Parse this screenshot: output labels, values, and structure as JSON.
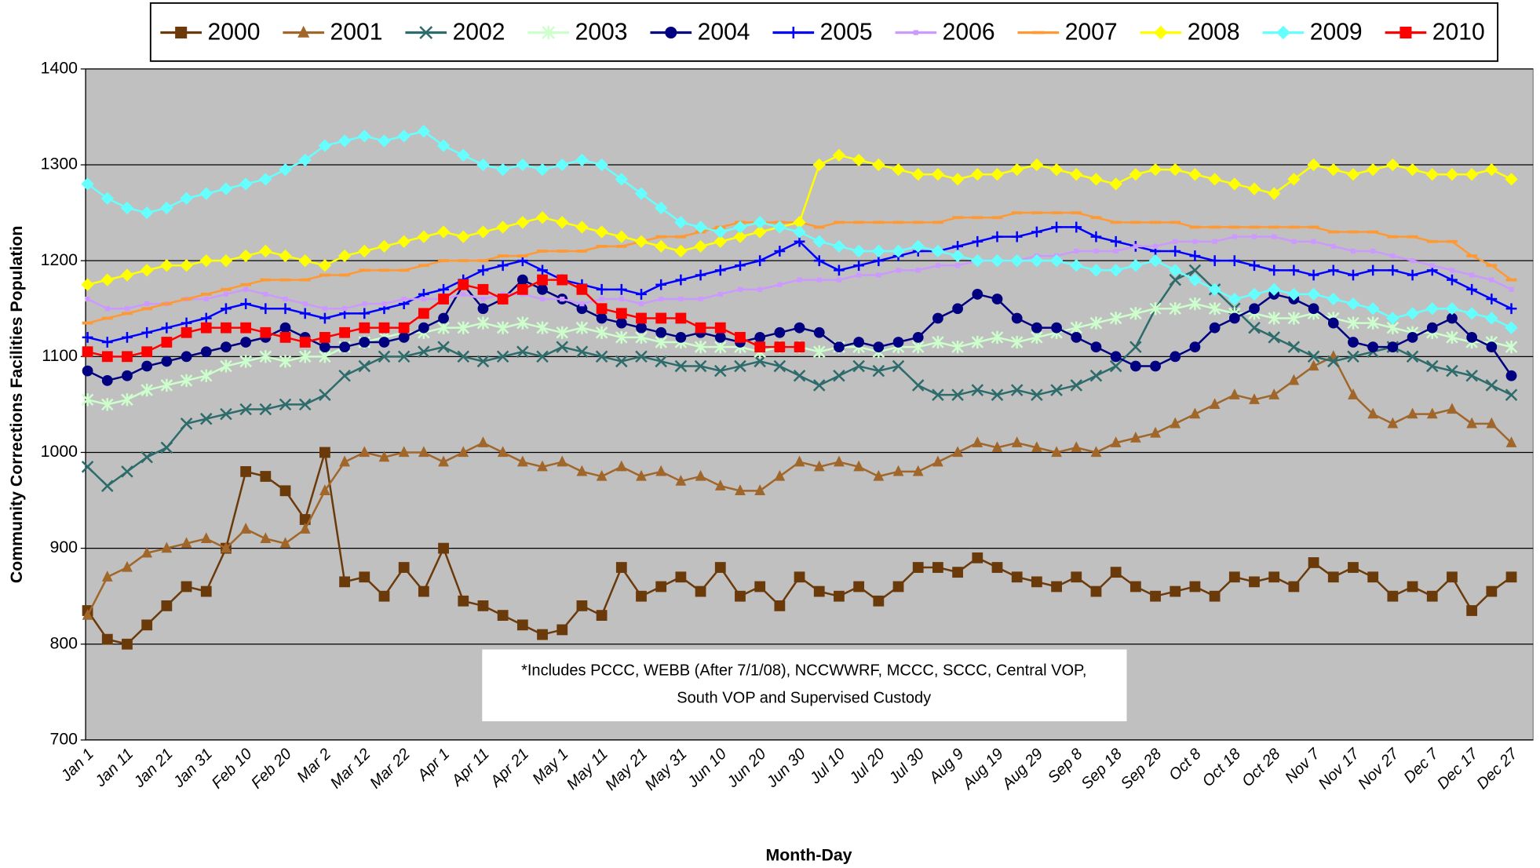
{
  "chart_data": {
    "type": "line",
    "x_label": "Month-Day",
    "y_label": "Community Corrections Facilities Population",
    "annotation": [
      "*Includes PCCC, WEBB (After 7/1/08), NCCWWRF, MCCC, SCCC, Central VOP,",
      "South VOP and Supervised Custody"
    ],
    "ylim": [
      700,
      1400
    ],
    "yticks": [
      700,
      800,
      900,
      1000,
      1100,
      1200,
      1300,
      1400
    ],
    "grid": true,
    "legend": "top",
    "categories": [
      "Jan 1",
      null,
      "Jan 11",
      null,
      "Jan 21",
      null,
      "Jan 31",
      null,
      "Feb 10",
      null,
      "Feb 20",
      null,
      "Mar 2",
      null,
      "Mar 12",
      null,
      "Mar 22",
      null,
      "Apr 1",
      null,
      "Apr 11",
      null,
      "Apr 21",
      null,
      "May 1",
      null,
      "May 11",
      null,
      "May 21",
      null,
      "May 31",
      null,
      "Jun 10",
      null,
      "Jun 20",
      null,
      "Jun 30",
      null,
      "Jul 10",
      null,
      "Jul 20",
      null,
      "Jul 30",
      null,
      "Aug 9",
      null,
      "Aug 19",
      null,
      "Aug 29",
      null,
      "Sep 8",
      null,
      "Sep 18",
      null,
      "Sep 28",
      null,
      "Oct 8",
      null,
      "Oct 18",
      null,
      "Oct 28",
      null,
      "Nov 7",
      null,
      "Nov 17",
      null,
      "Nov 27",
      null,
      "Dec 7",
      null,
      "Dec 17",
      null,
      "Dec 27"
    ],
    "series": [
      {
        "name": "2000",
        "color": "#6b3a0a",
        "marker": "square",
        "values": [
          835,
          805,
          800,
          820,
          840,
          860,
          855,
          900,
          980,
          975,
          960,
          930,
          1000,
          865,
          870,
          850,
          880,
          855,
          900,
          845,
          840,
          830,
          820,
          810,
          815,
          840,
          830,
          880,
          850,
          860,
          870,
          855,
          880,
          850,
          860,
          840,
          870,
          855,
          850,
          860,
          845,
          860,
          880,
          880,
          875,
          890,
          880,
          870,
          865,
          860,
          870,
          855,
          875,
          860,
          850,
          855,
          860,
          850,
          870,
          865,
          870,
          860,
          885,
          870,
          880,
          870,
          850,
          860,
          850,
          870,
          835,
          855,
          870
        ]
      },
      {
        "name": "2001",
        "color": "#a0662a",
        "marker": "triangle",
        "values": [
          830,
          870,
          880,
          895,
          900,
          905,
          910,
          900,
          920,
          910,
          905,
          920,
          960,
          990,
          1000,
          995,
          1000,
          1000,
          990,
          1000,
          1010,
          1000,
          990,
          985,
          990,
          980,
          975,
          985,
          975,
          980,
          970,
          975,
          965,
          960,
          960,
          975,
          990,
          985,
          990,
          985,
          975,
          980,
          980,
          990,
          1000,
          1010,
          1005,
          1010,
          1005,
          1000,
          1005,
          1000,
          1010,
          1015,
          1020,
          1030,
          1040,
          1050,
          1060,
          1055,
          1060,
          1075,
          1090,
          1100,
          1060,
          1040,
          1030,
          1040,
          1040,
          1045,
          1030,
          1030,
          1010
        ]
      },
      {
        "name": "2002",
        "color": "#2e6b6b",
        "marker": "x",
        "values": [
          985,
          965,
          980,
          995,
          1005,
          1030,
          1035,
          1040,
          1045,
          1045,
          1050,
          1050,
          1060,
          1080,
          1090,
          1100,
          1100,
          1105,
          1110,
          1100,
          1095,
          1100,
          1105,
          1100,
          1110,
          1105,
          1100,
          1095,
          1100,
          1095,
          1090,
          1090,
          1085,
          1090,
          1095,
          1090,
          1080,
          1070,
          1080,
          1090,
          1085,
          1090,
          1070,
          1060,
          1060,
          1065,
          1060,
          1065,
          1060,
          1065,
          1070,
          1080,
          1090,
          1110,
          1150,
          1180,
          1190,
          1170,
          1150,
          1130,
          1120,
          1110,
          1100,
          1095,
          1100,
          1105,
          1110,
          1100,
          1090,
          1085,
          1080,
          1070,
          1060
        ]
      },
      {
        "name": "2003",
        "color": "#ccffcc",
        "marker": "star",
        "values": [
          1055,
          1050,
          1055,
          1065,
          1070,
          1075,
          1080,
          1090,
          1095,
          1100,
          1095,
          1100,
          1100,
          1110,
          1115,
          1120,
          1125,
          1125,
          1130,
          1130,
          1135,
          1130,
          1135,
          1130,
          1125,
          1130,
          1125,
          1120,
          1120,
          1115,
          1115,
          1110,
          1110,
          1110,
          1105,
          1110,
          1110,
          1105,
          1110,
          1110,
          1105,
          1110,
          1110,
          1115,
          1110,
          1115,
          1120,
          1115,
          1120,
          1125,
          1130,
          1135,
          1140,
          1145,
          1150,
          1150,
          1155,
          1150,
          1145,
          1145,
          1140,
          1140,
          1145,
          1140,
          1135,
          1135,
          1130,
          1125,
          1125,
          1120,
          1115,
          1115,
          1110
        ]
      },
      {
        "name": "2004",
        "color": "#000080",
        "marker": "circle",
        "values": [
          1085,
          1075,
          1080,
          1090,
          1095,
          1100,
          1105,
          1110,
          1115,
          1120,
          1130,
          1120,
          1110,
          1110,
          1115,
          1115,
          1120,
          1130,
          1140,
          1175,
          1150,
          1160,
          1180,
          1170,
          1160,
          1150,
          1140,
          1135,
          1130,
          1125,
          1120,
          1125,
          1120,
          1115,
          1120,
          1125,
          1130,
          1125,
          1110,
          1115,
          1110,
          1115,
          1120,
          1140,
          1150,
          1165,
          1160,
          1140,
          1130,
          1130,
          1120,
          1110,
          1100,
          1090,
          1090,
          1100,
          1110,
          1130,
          1140,
          1150,
          1165,
          1160,
          1150,
          1135,
          1115,
          1110,
          1110,
          1120,
          1130,
          1140,
          1120,
          1110,
          1080
        ]
      },
      {
        "name": "2005",
        "color": "#0000ff",
        "marker": "plus",
        "values": [
          1120,
          1115,
          1120,
          1125,
          1130,
          1135,
          1140,
          1150,
          1155,
          1150,
          1150,
          1145,
          1140,
          1145,
          1145,
          1150,
          1155,
          1165,
          1170,
          1180,
          1190,
          1195,
          1200,
          1190,
          1180,
          1175,
          1170,
          1170,
          1165,
          1175,
          1180,
          1185,
          1190,
          1195,
          1200,
          1210,
          1220,
          1200,
          1190,
          1195,
          1200,
          1205,
          1210,
          1210,
          1215,
          1220,
          1225,
          1225,
          1230,
          1235,
          1235,
          1225,
          1220,
          1215,
          1210,
          1210,
          1205,
          1200,
          1200,
          1195,
          1190,
          1190,
          1185,
          1190,
          1185,
          1190,
          1190,
          1185,
          1190,
          1180,
          1170,
          1160,
          1150
        ]
      },
      {
        "name": "2006",
        "color": "#cc99ff",
        "marker": "smallsquare",
        "values": [
          1160,
          1150,
          1150,
          1155,
          1155,
          1160,
          1160,
          1165,
          1170,
          1165,
          1160,
          1155,
          1150,
          1150,
          1155,
          1155,
          1160,
          1160,
          1160,
          1165,
          1160,
          1165,
          1165,
          1160,
          1160,
          1155,
          1160,
          1160,
          1155,
          1160,
          1160,
          1160,
          1165,
          1170,
          1170,
          1175,
          1180,
          1180,
          1180,
          1185,
          1185,
          1190,
          1190,
          1195,
          1195,
          1200,
          1200,
          1200,
          1205,
          1205,
          1210,
          1210,
          1210,
          1215,
          1215,
          1220,
          1220,
          1220,
          1225,
          1225,
          1225,
          1220,
          1220,
          1215,
          1210,
          1210,
          1205,
          1200,
          1195,
          1190,
          1185,
          1180,
          1170
        ]
      },
      {
        "name": "2007",
        "color": "#ff9933",
        "marker": "dash",
        "values": [
          1135,
          1140,
          1145,
          1150,
          1155,
          1160,
          1165,
          1170,
          1175,
          1180,
          1180,
          1180,
          1185,
          1185,
          1190,
          1190,
          1190,
          1195,
          1200,
          1200,
          1200,
          1205,
          1205,
          1210,
          1210,
          1210,
          1215,
          1215,
          1220,
          1225,
          1225,
          1230,
          1235,
          1240,
          1240,
          1240,
          1240,
          1235,
          1240,
          1240,
          1240,
          1240,
          1240,
          1240,
          1245,
          1245,
          1245,
          1250,
          1250,
          1250,
          1250,
          1245,
          1240,
          1240,
          1240,
          1240,
          1235,
          1235,
          1235,
          1235,
          1235,
          1235,
          1235,
          1230,
          1230,
          1230,
          1225,
          1225,
          1220,
          1220,
          1205,
          1195,
          1180
        ]
      },
      {
        "name": "2008",
        "color": "#ffff00",
        "marker": "diamond",
        "values": [
          1175,
          1180,
          1185,
          1190,
          1195,
          1195,
          1200,
          1200,
          1205,
          1210,
          1205,
          1200,
          1195,
          1205,
          1210,
          1215,
          1220,
          1225,
          1230,
          1225,
          1230,
          1235,
          1240,
          1245,
          1240,
          1235,
          1230,
          1225,
          1220,
          1215,
          1210,
          1215,
          1220,
          1225,
          1230,
          1235,
          1240,
          1300,
          1310,
          1305,
          1300,
          1295,
          1290,
          1290,
          1285,
          1290,
          1290,
          1295,
          1300,
          1295,
          1290,
          1285,
          1280,
          1290,
          1295,
          1295,
          1290,
          1285,
          1280,
          1275,
          1270,
          1285,
          1300,
          1295,
          1290,
          1295,
          1300,
          1295,
          1290,
          1290,
          1290,
          1295,
          1285
        ]
      },
      {
        "name": "2009",
        "color": "#66ffff",
        "marker": "diamond",
        "values": [
          1280,
          1265,
          1255,
          1250,
          1255,
          1265,
          1270,
          1275,
          1280,
          1285,
          1295,
          1305,
          1320,
          1325,
          1330,
          1325,
          1330,
          1335,
          1320,
          1310,
          1300,
          1295,
          1300,
          1295,
          1300,
          1305,
          1300,
          1285,
          1270,
          1255,
          1240,
          1235,
          1230,
          1235,
          1240,
          1235,
          1230,
          1220,
          1215,
          1210,
          1210,
          1210,
          1215,
          1210,
          1205,
          1200,
          1200,
          1200,
          1200,
          1200,
          1195,
          1190,
          1190,
          1195,
          1200,
          1190,
          1180,
          1170,
          1160,
          1165,
          1170,
          1165,
          1165,
          1160,
          1155,
          1150,
          1140,
          1145,
          1150,
          1150,
          1145,
          1140,
          1130
        ]
      },
      {
        "name": "2010",
        "color": "#ff0000",
        "marker": "square",
        "values": [
          1105,
          1100,
          1100,
          1105,
          1115,
          1125,
          1130,
          1130,
          1130,
          1125,
          1120,
          1115,
          1120,
          1125,
          1130,
          1130,
          1130,
          1145,
          1160,
          1175,
          1170,
          1160,
          1170,
          1180,
          1180,
          1170,
          1150,
          1145,
          1140,
          1140,
          1140,
          1130,
          1130,
          1120,
          1110,
          1110,
          1110,
          null,
          null,
          null,
          null,
          null,
          null,
          null,
          null,
          null,
          null,
          null,
          null,
          null,
          null,
          null,
          null,
          null,
          null,
          null,
          null,
          null,
          null,
          null,
          null,
          null,
          null,
          null,
          null,
          null,
          null,
          null,
          null,
          null,
          null,
          null,
          null
        ]
      }
    ]
  }
}
